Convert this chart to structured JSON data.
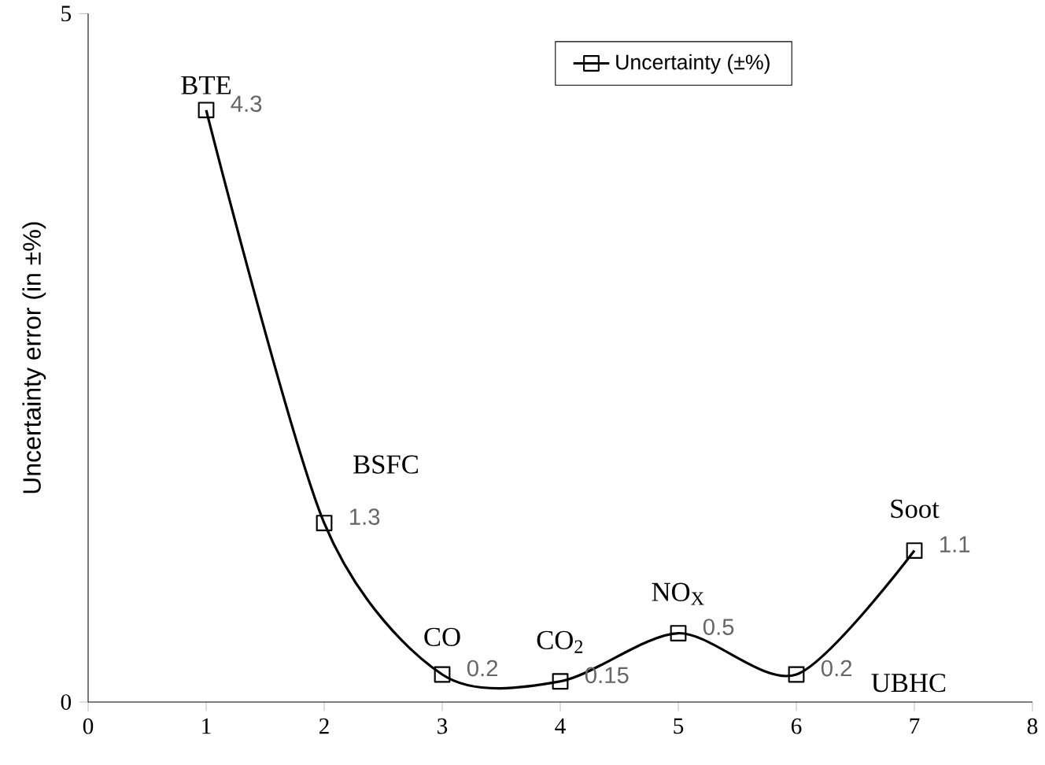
{
  "chart_data": {
    "type": "line",
    "ylabel": "Uncertainty error (in ±%)",
    "x": [
      1,
      2,
      3,
      4,
      5,
      6,
      7
    ],
    "series": [
      {
        "name": "Uncertainty (±%)",
        "color": "#000000",
        "values": [
          4.3,
          1.3,
          0.2,
          0.15,
          0.5,
          0.2,
          1.1
        ]
      }
    ],
    "data_labels": true,
    "marker": "square",
    "line_style": "solid",
    "legend": "top",
    "grid": false,
    "xlim": [
      0,
      8
    ],
    "xticks": [
      0,
      1,
      2,
      3,
      4,
      5,
      6,
      7,
      8
    ],
    "ylim": [
      0,
      5
    ],
    "yticks": [
      0,
      5
    ],
    "annotations": [
      {
        "text": "BTE",
        "x": 1,
        "y": 4.3
      },
      {
        "text": "BSFC",
        "x": 2,
        "y": 1.3
      },
      {
        "text": "CO",
        "x": 3,
        "y": 0.2
      },
      {
        "text": "CO$_{2}$",
        "x": 4,
        "y": 0.15
      },
      {
        "text": "NO$_{X}$",
        "x": 5,
        "y": 0.5
      },
      {
        "text": "UBHC",
        "x": 6,
        "y": 0.2
      },
      {
        "text": "Soot",
        "x": 7,
        "y": 1.1
      }
    ]
  }
}
